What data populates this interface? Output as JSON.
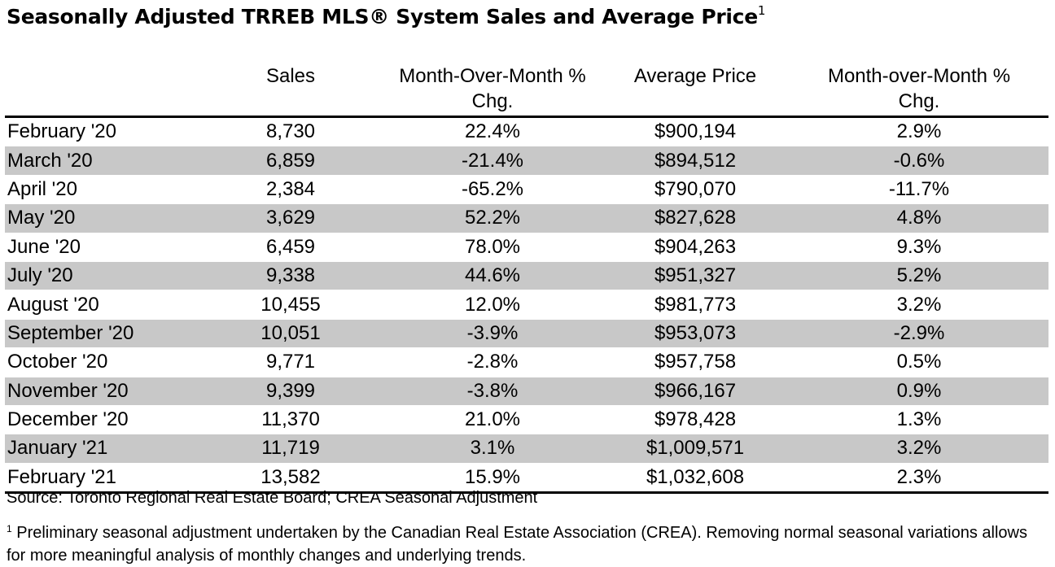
{
  "title": {
    "text": "Seasonally Adjusted TRREB MLS® System Sales and Average Price",
    "superscript": "1"
  },
  "table": {
    "headers": {
      "month": "",
      "sales": "Sales",
      "sales_mom_line1": "Month-Over-Month %",
      "sales_mom_line2": "Chg.",
      "avg_price": "Average Price",
      "price_mom_line1": "Month-over-Month %",
      "price_mom_line2": "Chg."
    },
    "rows": [
      {
        "month": "February '20",
        "sales": "8,730",
        "sales_chg": "22.4%",
        "avg_price": "$900,194",
        "price_chg": "2.9%"
      },
      {
        "month": "March '20",
        "sales": "6,859",
        "sales_chg": "-21.4%",
        "avg_price": "$894,512",
        "price_chg": "-0.6%"
      },
      {
        "month": "April '20",
        "sales": "2,384",
        "sales_chg": "-65.2%",
        "avg_price": "$790,070",
        "price_chg": "-11.7%"
      },
      {
        "month": "May '20",
        "sales": "3,629",
        "sales_chg": "52.2%",
        "avg_price": "$827,628",
        "price_chg": "4.8%"
      },
      {
        "month": "June '20",
        "sales": "6,459",
        "sales_chg": "78.0%",
        "avg_price": "$904,263",
        "price_chg": "9.3%"
      },
      {
        "month": "July '20",
        "sales": "9,338",
        "sales_chg": "44.6%",
        "avg_price": "$951,327",
        "price_chg": "5.2%"
      },
      {
        "month": "August '20",
        "sales": "10,455",
        "sales_chg": "12.0%",
        "avg_price": "$981,773",
        "price_chg": "3.2%"
      },
      {
        "month": "September '20",
        "sales": "10,051",
        "sales_chg": "-3.9%",
        "avg_price": "$953,073",
        "price_chg": "-2.9%"
      },
      {
        "month": "October '20",
        "sales": "9,771",
        "sales_chg": "-2.8%",
        "avg_price": "$957,758",
        "price_chg": "0.5%"
      },
      {
        "month": "November '20",
        "sales": "9,399",
        "sales_chg": "-3.8%",
        "avg_price": "$966,167",
        "price_chg": "0.9%"
      },
      {
        "month": "December '20",
        "sales": "11,370",
        "sales_chg": "21.0%",
        "avg_price": "$978,428",
        "price_chg": "1.3%"
      },
      {
        "month": "January '21",
        "sales": "11,719",
        "sales_chg": "3.1%",
        "avg_price": "$1,009,571",
        "price_chg": "3.2%"
      },
      {
        "month": "February '21",
        "sales": "13,582",
        "sales_chg": "15.9%",
        "avg_price": "$1,032,608",
        "price_chg": "2.3%"
      }
    ],
    "row_shade_color": "#c8c8c8"
  },
  "source": "Source: Toronto Regional Real Estate Board; CREA Seasonal Adjustment",
  "footnote": {
    "marker": "1",
    "text": " Preliminary seasonal adjustment undertaken by the Canadian Real Estate Association (CREA). Removing normal seasonal variations allows for more meaningful analysis of monthly changes and underlying trends."
  }
}
